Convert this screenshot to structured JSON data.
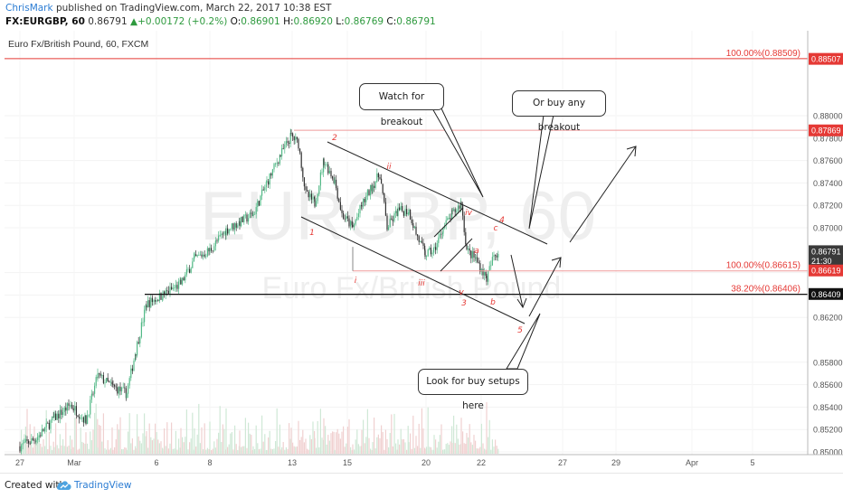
{
  "header": {
    "author": "ChrisMark",
    "published_text": "published on TradingView.com, March 22, 2017 10:38 EST",
    "symbol": "FX:EURGBP, 60",
    "last_price": "0.86791",
    "change_arrow": "▲",
    "change": "+0.00172 (+0.2%)",
    "open_label": "O:",
    "open": "0.86901",
    "high_label": "H:",
    "high": "0.86920",
    "low_label": "L:",
    "low": "0.86769",
    "close_label": "C:",
    "close": "0.86791"
  },
  "chart_data": {
    "type": "candlestick",
    "title": "Euro Fx/British Pound, 60, FXCM",
    "watermark_symbol": "EURGBP, 60",
    "watermark_name": "Euro Fx/British Pound",
    "ylim": [
      0.85,
      0.8855
    ],
    "y_ticks": [
      "0.88000",
      "0.87800",
      "0.87600",
      "0.87400",
      "0.87200",
      "0.87000",
      "0.86600",
      "0.86400",
      "0.86200",
      "0.85800",
      "0.85600",
      "0.85400",
      "0.85200",
      "0.85000"
    ],
    "x_ticks": [
      "27",
      "Mar",
      "6",
      "8",
      "13",
      "15",
      "20",
      "22",
      "27",
      "29",
      "Apr",
      "5"
    ],
    "axis_markers": [
      {
        "label": "0.88507",
        "value": 0.88507,
        "color": "#e53935"
      },
      {
        "label": "0.87869",
        "value": 0.87869,
        "color": "#e53935"
      },
      {
        "label": "0.86791",
        "value": 0.86791,
        "color": "#3a3a3a"
      },
      {
        "label": "21:30",
        "value": 0.86707,
        "color": "#3a3a3a"
      },
      {
        "label": "0.86619",
        "value": 0.86619,
        "color": "#e53935"
      },
      {
        "label": "0.86409",
        "value": 0.86409,
        "color": "#111111"
      }
    ],
    "fib_levels": [
      {
        "label": "100.00%(0.88509)",
        "value": 0.88509
      },
      {
        "label": "100.00%(0.86615)",
        "value": 0.86615
      },
      {
        "label": "38.20%(0.86406)",
        "value": 0.86406
      }
    ],
    "wave_labels": [
      "1",
      "2",
      "3",
      "4",
      "5",
      "i",
      "ii",
      "iii",
      "iv",
      "v",
      "a",
      "b",
      "c"
    ],
    "colors": {
      "up": "#53b987",
      "down": "#333333",
      "fib": "#e53935",
      "volume_up": "#cfe8d6",
      "volume_down": "#f0d0d0"
    }
  },
  "annotations": {
    "watch": "Watch for breakout",
    "buy_any": "Or buy any breakout",
    "look": "Look for buy setups here"
  },
  "footer": {
    "created": "Created with",
    "brand": "TradingView",
    "logo_icon": "tradingview-cloud-icon"
  }
}
